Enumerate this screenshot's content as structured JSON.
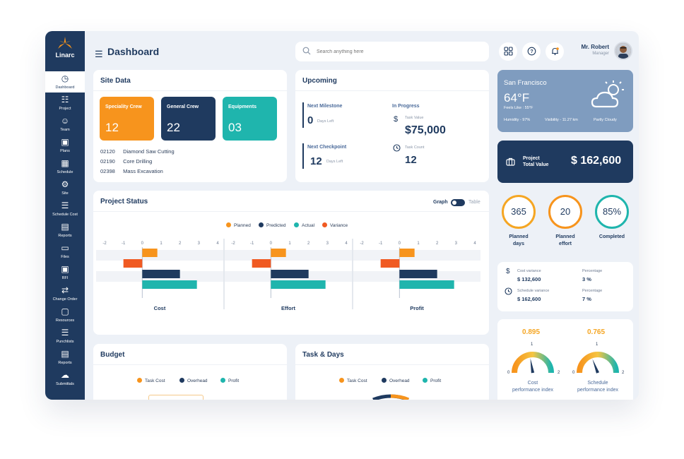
{
  "brand": {
    "name": "Linarc"
  },
  "sidebar": {
    "items": [
      {
        "label": "Dashboard",
        "icon": "dashboard-icon"
      },
      {
        "label": "Project",
        "icon": "project-icon"
      },
      {
        "label": "Team",
        "icon": "team-icon"
      },
      {
        "label": "Plans",
        "icon": "plans-icon"
      },
      {
        "label": "Schedule",
        "icon": "schedule-icon"
      },
      {
        "label": "Site",
        "icon": "site-icon"
      },
      {
        "label": "Schedule Cost",
        "icon": "schedule-cost-icon"
      },
      {
        "label": "Reports",
        "icon": "reports-icon"
      },
      {
        "label": "Files",
        "icon": "files-icon"
      },
      {
        "label": "RFI",
        "icon": "rfi-icon"
      },
      {
        "label": "Change Order",
        "icon": "change-order-icon"
      },
      {
        "label": "Resources",
        "icon": "resources-icon"
      },
      {
        "label": "Punchlists",
        "icon": "punchlists-icon"
      },
      {
        "label": "Reports",
        "icon": "reports-icon"
      },
      {
        "label": "Submittals",
        "icon": "submittals-icon"
      }
    ]
  },
  "header": {
    "title": "Dashboard",
    "search_placeholder": "Search anything here",
    "user_name": "Mr. Robert",
    "user_role": "Manager"
  },
  "site_data": {
    "title": "Site Data",
    "tiles": [
      {
        "label": "Speciality Crew",
        "value": "12",
        "color": "#f7941d"
      },
      {
        "label": "General Crew",
        "value": "22",
        "color": "#1f3a5f"
      },
      {
        "label": "Equipments",
        "value": "03",
        "color": "#1fb5ad"
      }
    ],
    "codes": [
      {
        "code": "02120",
        "name": "Diamond Saw Cutting"
      },
      {
        "code": "02190",
        "name": "Core Drilling"
      },
      {
        "code": "02398",
        "name": "Mass Excavation"
      }
    ]
  },
  "upcoming": {
    "title": "Upcoming",
    "next_milestone": {
      "label": "Next Milestone",
      "value": "0",
      "unit": "Days Left"
    },
    "next_checkpoint": {
      "label": "Next Checkpoint",
      "value": "12",
      "unit": "Days Left"
    },
    "in_progress": {
      "label": "In Progress",
      "task_value_label": "Task Value",
      "task_value": "$75,000",
      "task_count_label": "Task Count",
      "task_count": "12"
    }
  },
  "project_status": {
    "title": "Project Status",
    "toggle_graph": "Graph",
    "toggle_table": "Table"
  },
  "chart_data": {
    "type": "bar",
    "orientation": "horizontal",
    "title": "Project Status",
    "legend": [
      "Planned",
      "Predicted",
      "Actual",
      "Variance"
    ],
    "colors": {
      "Planned": "#f7941d",
      "Predicted": "#1f3a5f",
      "Actual": "#1fb5ad",
      "Variance": "#f05a22"
    },
    "xticks": [
      "-2",
      "-1",
      "0",
      "1",
      "2",
      "3",
      "4"
    ],
    "xlim": [
      -2,
      4
    ],
    "panels": [
      {
        "name": "Cost",
        "series": [
          {
            "name": "Planned",
            "value": 0.8
          },
          {
            "name": "Variance",
            "value": -1.0
          },
          {
            "name": "Predicted",
            "value": 2.0
          },
          {
            "name": "Actual",
            "value": 2.9
          }
        ]
      },
      {
        "name": "Effort",
        "series": [
          {
            "name": "Planned",
            "value": 0.8
          },
          {
            "name": "Variance",
            "value": -1.0
          },
          {
            "name": "Predicted",
            "value": 2.0
          },
          {
            "name": "Actual",
            "value": 2.9
          }
        ]
      },
      {
        "name": "Profit",
        "series": [
          {
            "name": "Planned",
            "value": 0.8
          },
          {
            "name": "Variance",
            "value": -1.0
          },
          {
            "name": "Predicted",
            "value": 2.0
          },
          {
            "name": "Actual",
            "value": 2.9
          }
        ]
      }
    ]
  },
  "budget": {
    "title": "Budget",
    "legend": [
      "Task Cost",
      "Overhead",
      "Profit"
    ]
  },
  "task_days": {
    "title": "Task & Days",
    "legend": [
      "Task Cost",
      "Overhead",
      "Profit"
    ]
  },
  "weather": {
    "city": "San Francisco",
    "temp": "64°F",
    "feels_like": "Feels Like : 55°F",
    "humidity": "Humidity - 97%",
    "visibility": "Visibility - 11.27 km",
    "condition": "Partly Cloudy"
  },
  "project_total": {
    "label_line1": "Project",
    "label_line2": "Total Value",
    "value": "$ 162,600"
  },
  "kpis": [
    {
      "value": "365",
      "label_line1": "Planned",
      "label_line2": "days",
      "color": "#f5a623"
    },
    {
      "value": "20",
      "label_line1": "Planned",
      "label_line2": "effort",
      "color": "#f7941d"
    },
    {
      "value": "85%",
      "label_line1": "Completed",
      "label_line2": "",
      "color": "#1fb5ad"
    }
  ],
  "variance": {
    "cost_label": "Cost variance",
    "cost_value": "$ 132,600",
    "cost_pct_label": "Percentage",
    "cost_pct": "3 %",
    "schedule_label": "Schedule variance",
    "schedule_value": "$ 162,600",
    "schedule_pct_label": "Percentage",
    "schedule_pct": "7 %"
  },
  "gauges": [
    {
      "value": "0.895",
      "label_line1": "Cost",
      "label_line2": "performance index",
      "min": "0",
      "mid": "1",
      "max": "2"
    },
    {
      "value": "0.765",
      "label_line1": "Schedule",
      "label_line2": "performance index",
      "min": "0",
      "mid": "1",
      "max": "2"
    }
  ]
}
